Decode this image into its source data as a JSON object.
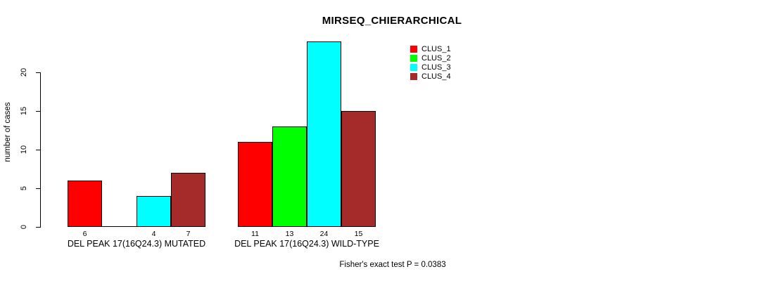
{
  "chart_data": {
    "type": "bar",
    "title": "MIRSEQ_CHIERARCHICAL",
    "ylabel": "number of cases",
    "yticks": [
      "0",
      "5",
      "10",
      "15",
      "20"
    ],
    "ylim": [
      0,
      24
    ],
    "grid": false,
    "legend_position": "top-right",
    "groups": [
      {
        "label": "DEL PEAK 17(16Q24.3) MUTATED",
        "values": [
          6,
          0,
          4,
          7
        ],
        "bar_labels": [
          "6",
          "",
          "4",
          "7"
        ]
      },
      {
        "label": "DEL PEAK 17(16Q24.3) WILD-TYPE",
        "values": [
          11,
          13,
          24,
          15
        ],
        "bar_labels": [
          "11",
          "13",
          "24",
          "15"
        ]
      }
    ],
    "series": [
      {
        "name": "CLUS_1",
        "color": "#ff0000"
      },
      {
        "name": "CLUS_2",
        "color": "#00ff00"
      },
      {
        "name": "CLUS_3",
        "color": "#00ffff"
      },
      {
        "name": "CLUS_4",
        "color": "#a52a2a"
      }
    ],
    "annotation": "Fisher's exact test P = 0.0383"
  }
}
